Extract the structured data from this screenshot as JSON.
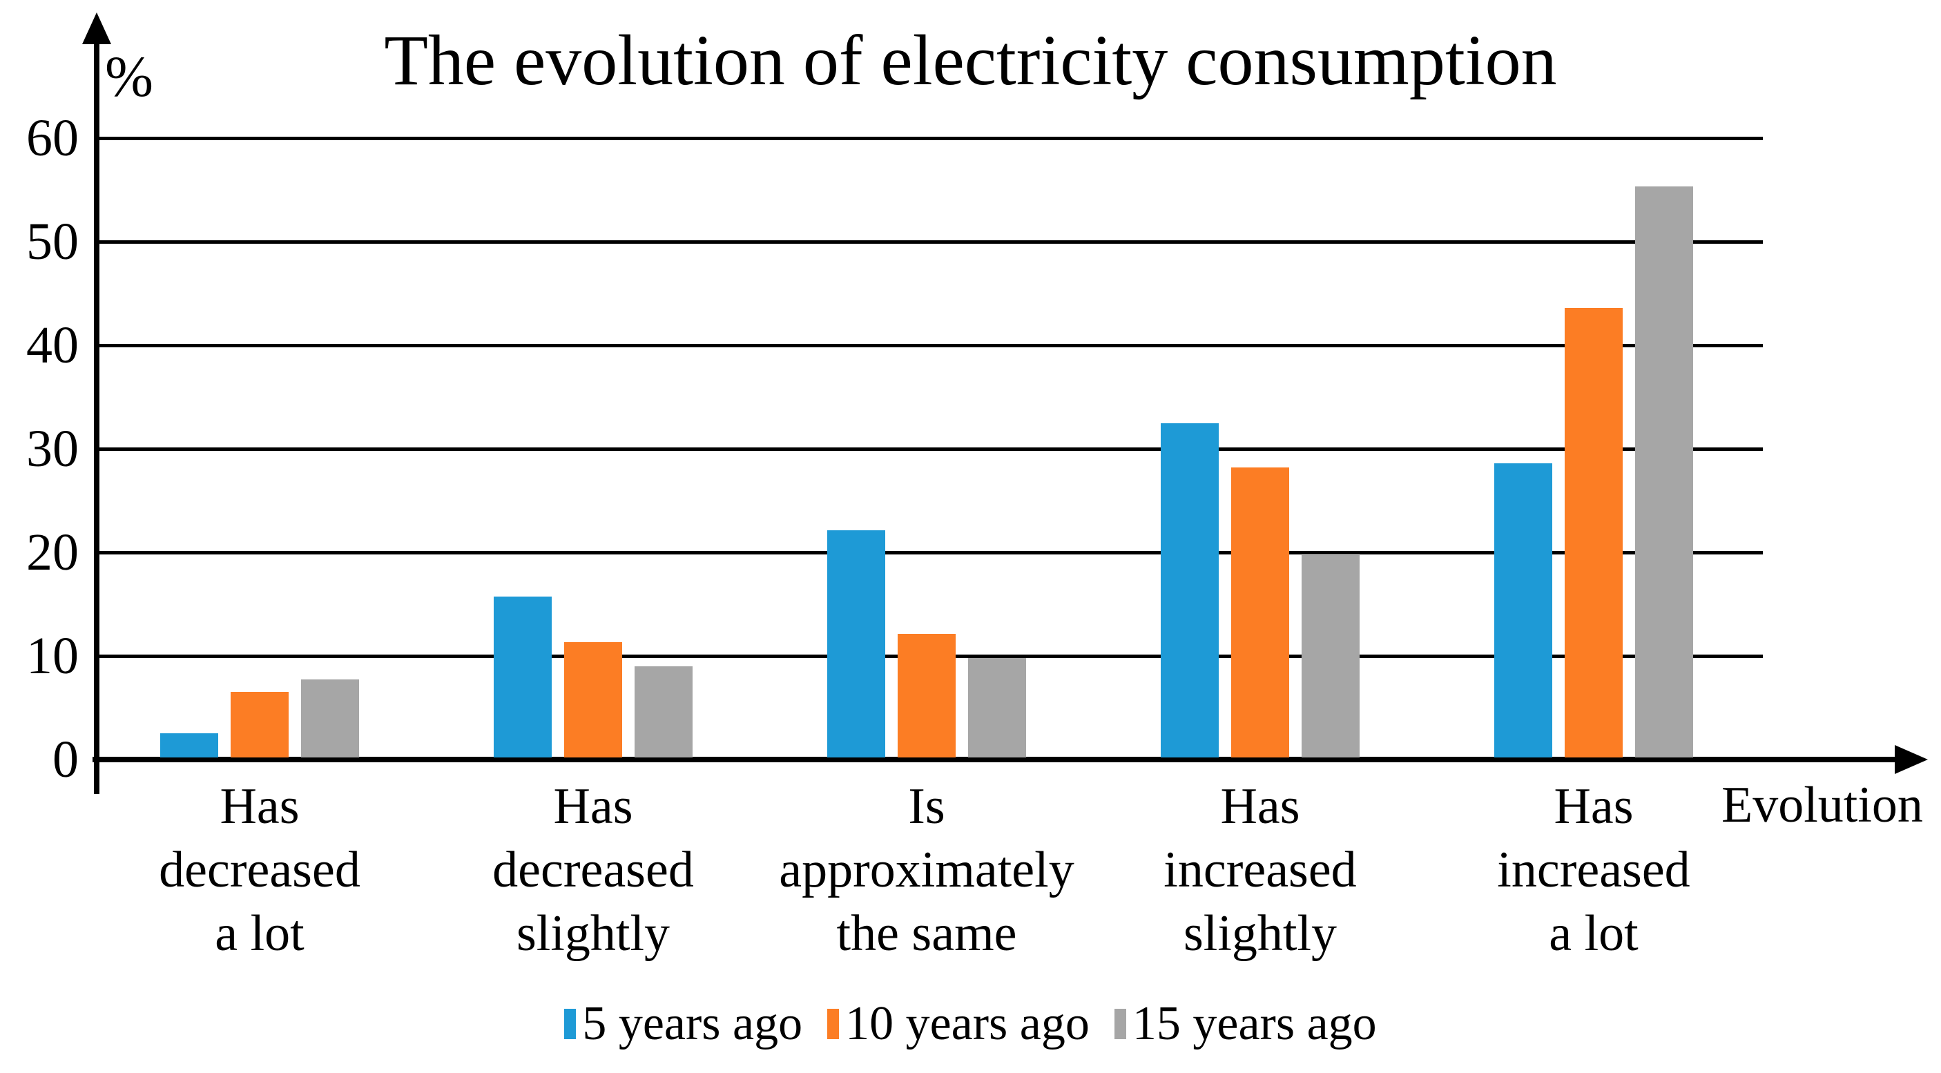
{
  "title": "The evolution of electricity consumption",
  "chart_data": {
    "type": "bar",
    "title": "The evolution of electricity consumption",
    "xlabel": "Evolution",
    "ylabel": "%",
    "ylim": [
      0,
      60
    ],
    "yticks": [
      60,
      50,
      40,
      30,
      20,
      10,
      0
    ],
    "grid": true,
    "legend_position": "bottom",
    "categories": [
      "Has\ndecreased\na lot",
      "Has\ndecreased\nslightly",
      "Is\napproximately\nthe same",
      "Has\nincreased\nslightly",
      "Has\nincreased\na lot"
    ],
    "series": [
      {
        "name": "5 years ago",
        "color": "#1E9AD6",
        "values": [
          2.3,
          15.5,
          21.9,
          32.3,
          28.4
        ]
      },
      {
        "name": "10 years ago",
        "color": "#FC7D24",
        "values": [
          6.3,
          11.1,
          11.9,
          28.0,
          43.4
        ]
      },
      {
        "name": "15 years ago",
        "color": "#A6A6A6",
        "values": [
          7.5,
          8.8,
          9.6,
          19.5,
          55.1
        ]
      }
    ]
  }
}
